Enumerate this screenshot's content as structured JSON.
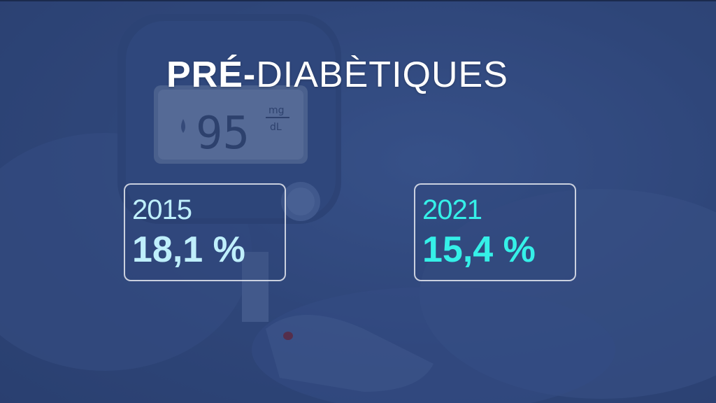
{
  "title": {
    "bold_part": "PRÉ-",
    "light_part": "DIABÈTIQUES"
  },
  "background": {
    "meter_digits": "95",
    "meter_unit_top": "mg",
    "meter_unit_bottom": "dL"
  },
  "stats": [
    {
      "year": "2015",
      "value": "18,1 %",
      "color": "#bfeffb"
    },
    {
      "year": "2021",
      "value": "15,4 %",
      "color": "#35f0e8"
    }
  ],
  "colors": {
    "overlay": "#2f4679",
    "highlight": "#35f0e8",
    "title": "#ffffff"
  }
}
